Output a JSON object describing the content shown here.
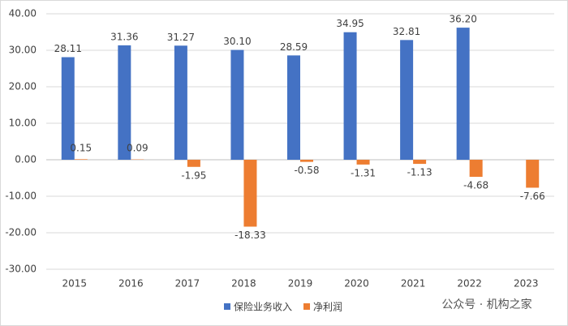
{
  "chart_data": {
    "type": "bar",
    "categories": [
      "2015",
      "2016",
      "2017",
      "2018",
      "2019",
      "2020",
      "2021",
      "2022",
      "2023"
    ],
    "series": [
      {
        "name": "保险业务收入",
        "color": "#4472c4",
        "values": [
          28.11,
          31.36,
          31.27,
          30.1,
          28.59,
          34.95,
          32.81,
          36.2,
          null
        ],
        "value_labels": [
          "28.11",
          "31.36",
          "31.27",
          "30.10",
          "28.59",
          "34.95",
          "32.81",
          "36.20",
          null
        ]
      },
      {
        "name": "净利润",
        "color": "#ed7d31",
        "values": [
          0.15,
          0.09,
          -1.95,
          -18.33,
          -0.58,
          -1.31,
          -1.13,
          -4.68,
          -7.66
        ],
        "value_labels": [
          "0.15",
          "0.09",
          "-1.95",
          "-18.33",
          "-0.58",
          "-1.31",
          "-1.13",
          "-4.68",
          "-7.66"
        ]
      }
    ],
    "ylim": [
      -30,
      40
    ],
    "yticks": [
      {
        "value": -30,
        "label": "-30.00"
      },
      {
        "value": -20,
        "label": "-20.00"
      },
      {
        "value": -10,
        "label": "-10.00"
      },
      {
        "value": 0,
        "label": "0.00"
      },
      {
        "value": 10,
        "label": "10.00"
      },
      {
        "value": 20,
        "label": "20.00"
      },
      {
        "value": 30,
        "label": "30.00"
      },
      {
        "value": 40,
        "label": "40.00"
      }
    ],
    "grid": true,
    "legend": "bottom",
    "watermark": "公众号 · 机构之家"
  }
}
